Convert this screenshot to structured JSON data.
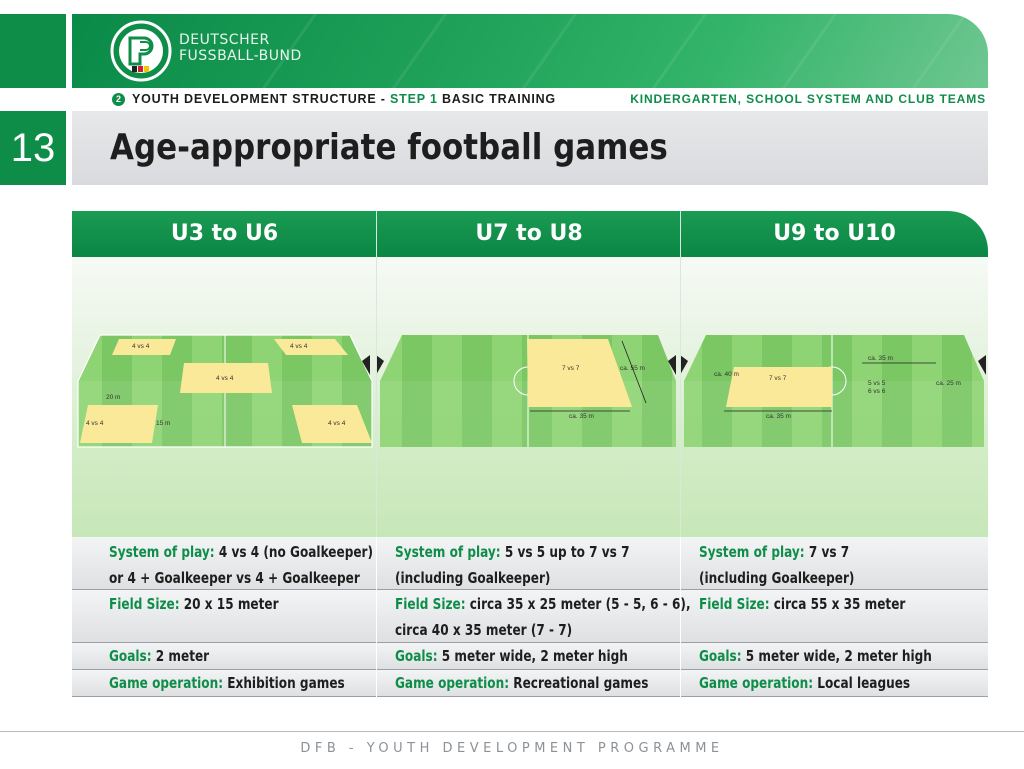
{
  "header": {
    "org_line1": "DEUTSCHER",
    "org_line2": "FUSSBALL-BUND",
    "step_number": "2",
    "nav_prefix": "YOUTH DEVELOPMENT STRUCTURE - ",
    "nav_step": "STEP 1",
    "nav_suffix": " BASIC TRAINING",
    "nav_right": "KINDERGARTEN, SCHOOL SYSTEM AND CLUB TEAMS",
    "page_number": "13",
    "title": "Age-appropriate football games"
  },
  "columns": [
    {
      "heading": "U3 to U6",
      "field_labels": [
        "4 vs 4",
        "4 vs 4",
        "4 vs 4",
        "20 m",
        "4 vs 4",
        "15 m",
        "4 vs 4"
      ],
      "system_label": "System of play:",
      "system_text": "4 vs 4 (no Goalkeeper)",
      "system_text2": "or 4 + Goalkeeper vs 4 + Goalkeeper",
      "field_label": "Field Size:",
      "field_text": "20 x 15 meter",
      "field_text2": "",
      "goals_label": "Goals:",
      "goals_text": "2 meter",
      "game_label": "Game operation:",
      "game_text": "Exhibition games"
    },
    {
      "heading": "U7 to U8",
      "field_labels": [
        "7 vs 7",
        "ca. 55 m",
        "ca. 35 m"
      ],
      "system_label": "System of play:",
      "system_text": "5 vs 5 up to 7 vs 7",
      "system_text2": "(including Goalkeeper)",
      "field_label": "Field Size:",
      "field_text": "circa 35 x 25 meter (5 - 5, 6 - 6),",
      "field_text2": "circa 40 x 35 meter (7 - 7)",
      "goals_label": "Goals:",
      "goals_text": "5 meter wide, 2 meter high",
      "game_label": "Game operation:",
      "game_text": "Recreational games"
    },
    {
      "heading": "U9 to U10",
      "field_labels": [
        "ca. 35 m",
        "ca. 40 m",
        "7 vs 7",
        "5 vs 5",
        "6 vs 6",
        "ca. 25 m",
        "ca. 35 m"
      ],
      "system_label": "System of play:",
      "system_text": "7 vs 7",
      "system_text2": "(including Goalkeeper)",
      "field_label": "Field Size:",
      "field_text": "circa 55 x 35 meter",
      "field_text2": "",
      "goals_label": "Goals:",
      "goals_text": "5 meter wide, 2 meter high",
      "game_label": "Game operation:",
      "game_text": "Local leagues"
    }
  ],
  "footer": "DFB - YOUTH DEVELOPMENT PROGRAMME",
  "colors": {
    "primary_green": "#0e8d49",
    "pitch_light": "#8fd474",
    "pitch_dark": "#6fc25a",
    "zone_yellow": "#fbe99a"
  }
}
